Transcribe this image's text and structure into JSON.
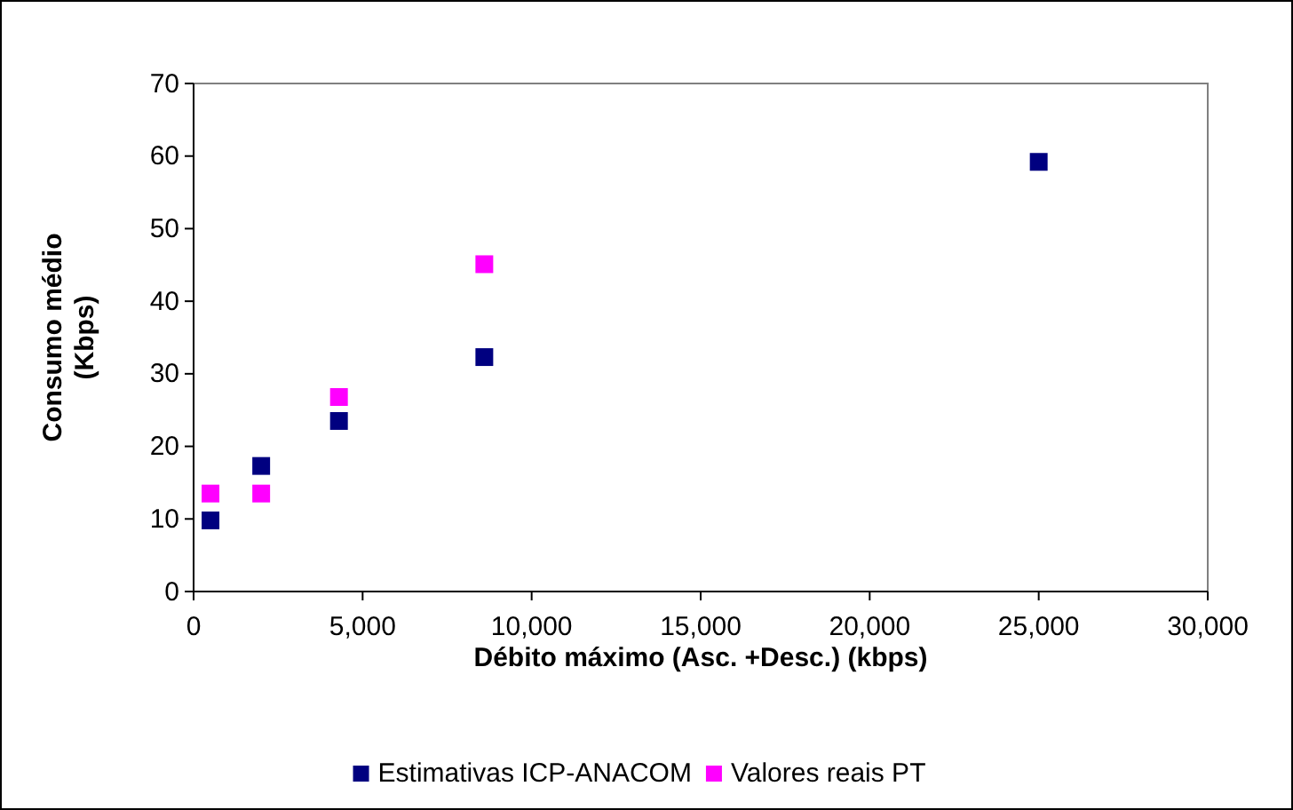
{
  "chart_data": {
    "type": "scatter",
    "xlabel": "Débito máximo (Asc. +Desc.) (kbps)",
    "ylabel": "Consumo médio\n(Kbps)",
    "xlim": [
      0,
      30000
    ],
    "xticks": [
      {
        "value": 0,
        "label": "0"
      },
      {
        "value": 5000,
        "label": "5,000"
      },
      {
        "value": 10000,
        "label": "10,000"
      },
      {
        "value": 15000,
        "label": "15,000"
      },
      {
        "value": 20000,
        "label": "20,000"
      },
      {
        "value": 25000,
        "label": "25,000"
      },
      {
        "value": 30000,
        "label": "30,000"
      }
    ],
    "ylim": [
      0,
      70
    ],
    "yticks": [
      0,
      10,
      20,
      30,
      40,
      50,
      60,
      70
    ],
    "grid": false,
    "legend": "bottom",
    "marker": "square",
    "series": [
      {
        "name": "Estimativas ICP-ANACOM",
        "color": "#000080",
        "x": [
          500,
          2000,
          4300,
          8600,
          25000
        ],
        "values": [
          9.8,
          17.3,
          23.5,
          32.3,
          59.2
        ]
      },
      {
        "name": "Valores reais PT",
        "color": "#ff00ff",
        "x": [
          500,
          2000,
          4300,
          8600
        ],
        "values": [
          13.5,
          13.5,
          26.8,
          45.1
        ]
      }
    ]
  }
}
